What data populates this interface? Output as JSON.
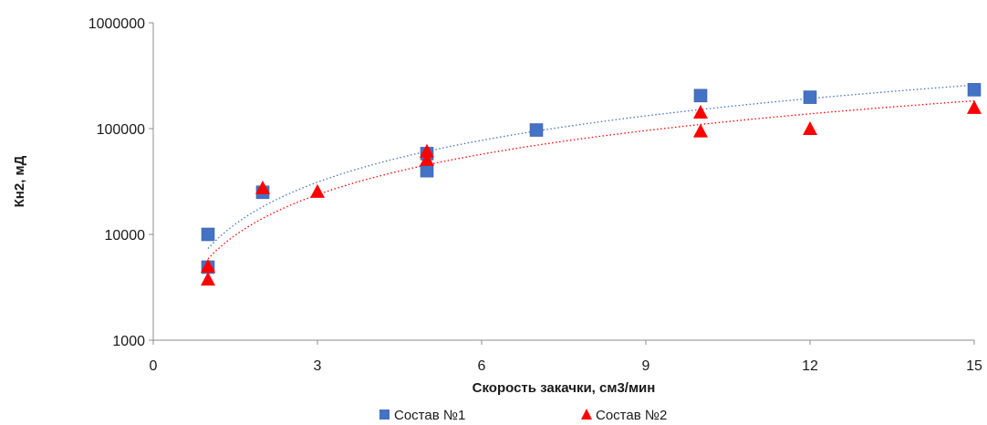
{
  "chart_data": {
    "type": "scatter",
    "xlabel": "Скорость закачки, см3/мин",
    "ylabel": "Кн2, мД",
    "xlim": [
      0,
      15
    ],
    "ylim": [
      1000,
      1000000
    ],
    "y_scale": "log",
    "x_ticks": [
      "0",
      "3",
      "6",
      "9",
      "12",
      "15"
    ],
    "y_ticks": [
      "1000",
      "10000",
      "100000",
      "1000000"
    ],
    "grid": false,
    "legend_position": "bottom",
    "series": [
      {
        "name": "Состав №1",
        "marker": "square",
        "color": "#4472C4",
        "trendline_color": "#4472C4",
        "trendline": "power",
        "points": [
          [
            1,
            10000
          ],
          [
            1,
            4900
          ],
          [
            2,
            25000
          ],
          [
            5,
            40000
          ],
          [
            5,
            58000
          ],
          [
            7,
            97000
          ],
          [
            10,
            205000
          ],
          [
            12,
            198000
          ],
          [
            15,
            233000
          ]
        ]
      },
      {
        "name": "Состав №2",
        "marker": "triangle",
        "color": "#FF0000",
        "trendline_color": "#FF0000",
        "trendline": "power",
        "points": [
          [
            1,
            4900
          ],
          [
            1,
            3700
          ],
          [
            2,
            27000
          ],
          [
            3,
            25000
          ],
          [
            5,
            50000
          ],
          [
            5,
            60000
          ],
          [
            10,
            93000
          ],
          [
            10,
            140000
          ],
          [
            12,
            98000
          ],
          [
            15,
            155000
          ]
        ]
      }
    ]
  }
}
